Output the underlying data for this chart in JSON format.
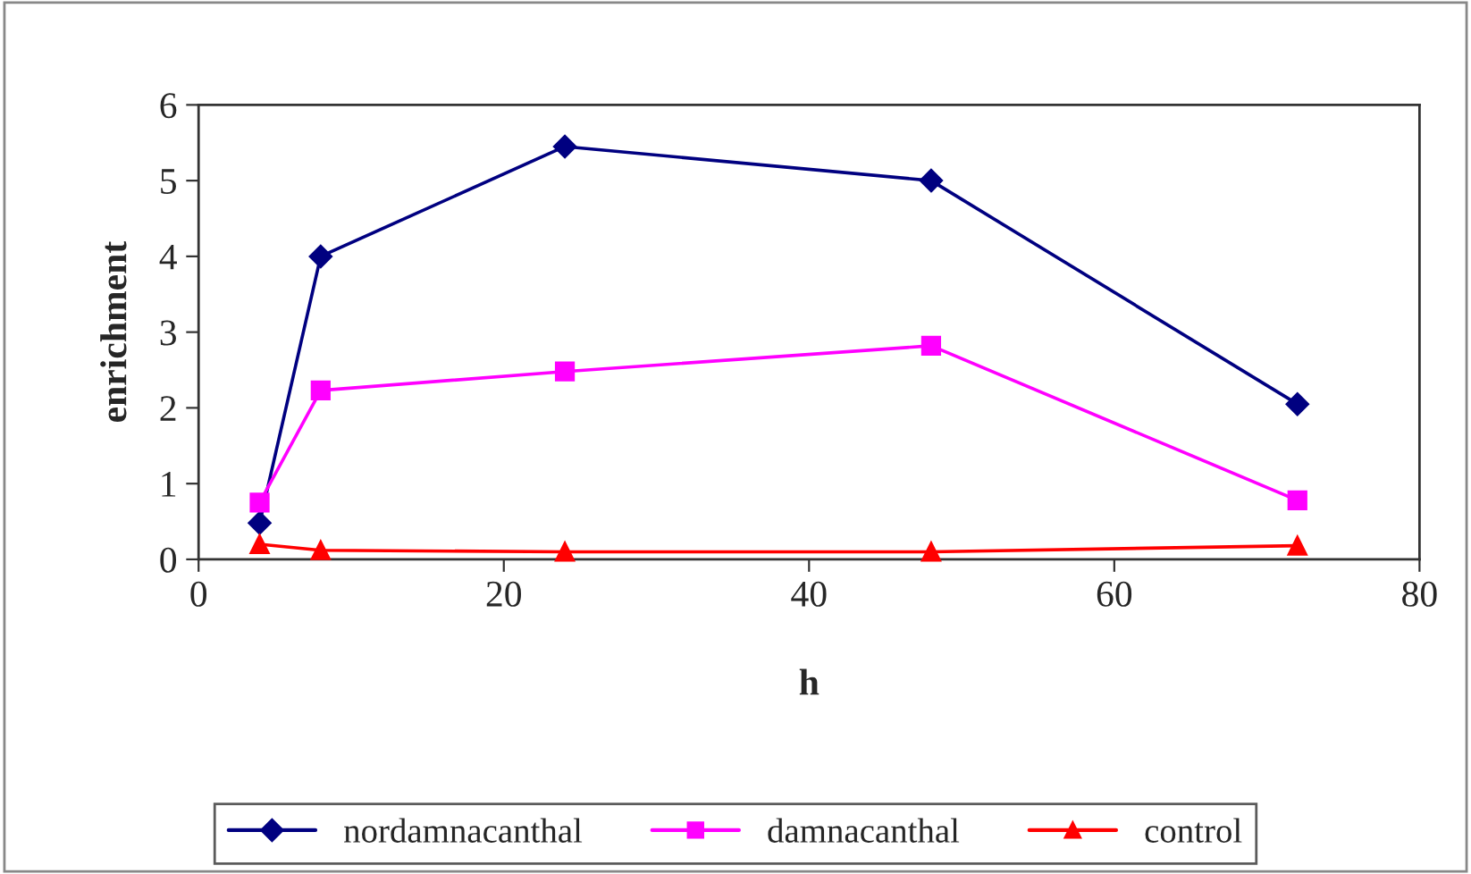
{
  "chart_data": {
    "type": "line",
    "xlabel": "h",
    "ylabel": "enrichment",
    "x": [
      4,
      8,
      24,
      48,
      72
    ],
    "series": [
      {
        "name": "nordamnacanthal",
        "color": "#000080",
        "marker": "diamond",
        "values": [
          0.48,
          4.0,
          5.45,
          5.0,
          2.05
        ]
      },
      {
        "name": "damnacanthal",
        "color": "#ff00ff",
        "marker": "square",
        "values": [
          0.75,
          2.23,
          2.48,
          2.82,
          0.78
        ]
      },
      {
        "name": "control",
        "color": "#ff0000",
        "marker": "triangle",
        "values": [
          0.2,
          0.12,
          0.1,
          0.1,
          0.18
        ]
      }
    ],
    "xlim": [
      0,
      80
    ],
    "xticks": [
      0,
      20,
      40,
      60,
      80
    ],
    "ylim": [
      0,
      6
    ],
    "yticks": [
      0,
      1,
      2,
      3,
      4,
      5,
      6
    ],
    "grid": false,
    "legend": "bottom",
    "line_style": "solid"
  }
}
